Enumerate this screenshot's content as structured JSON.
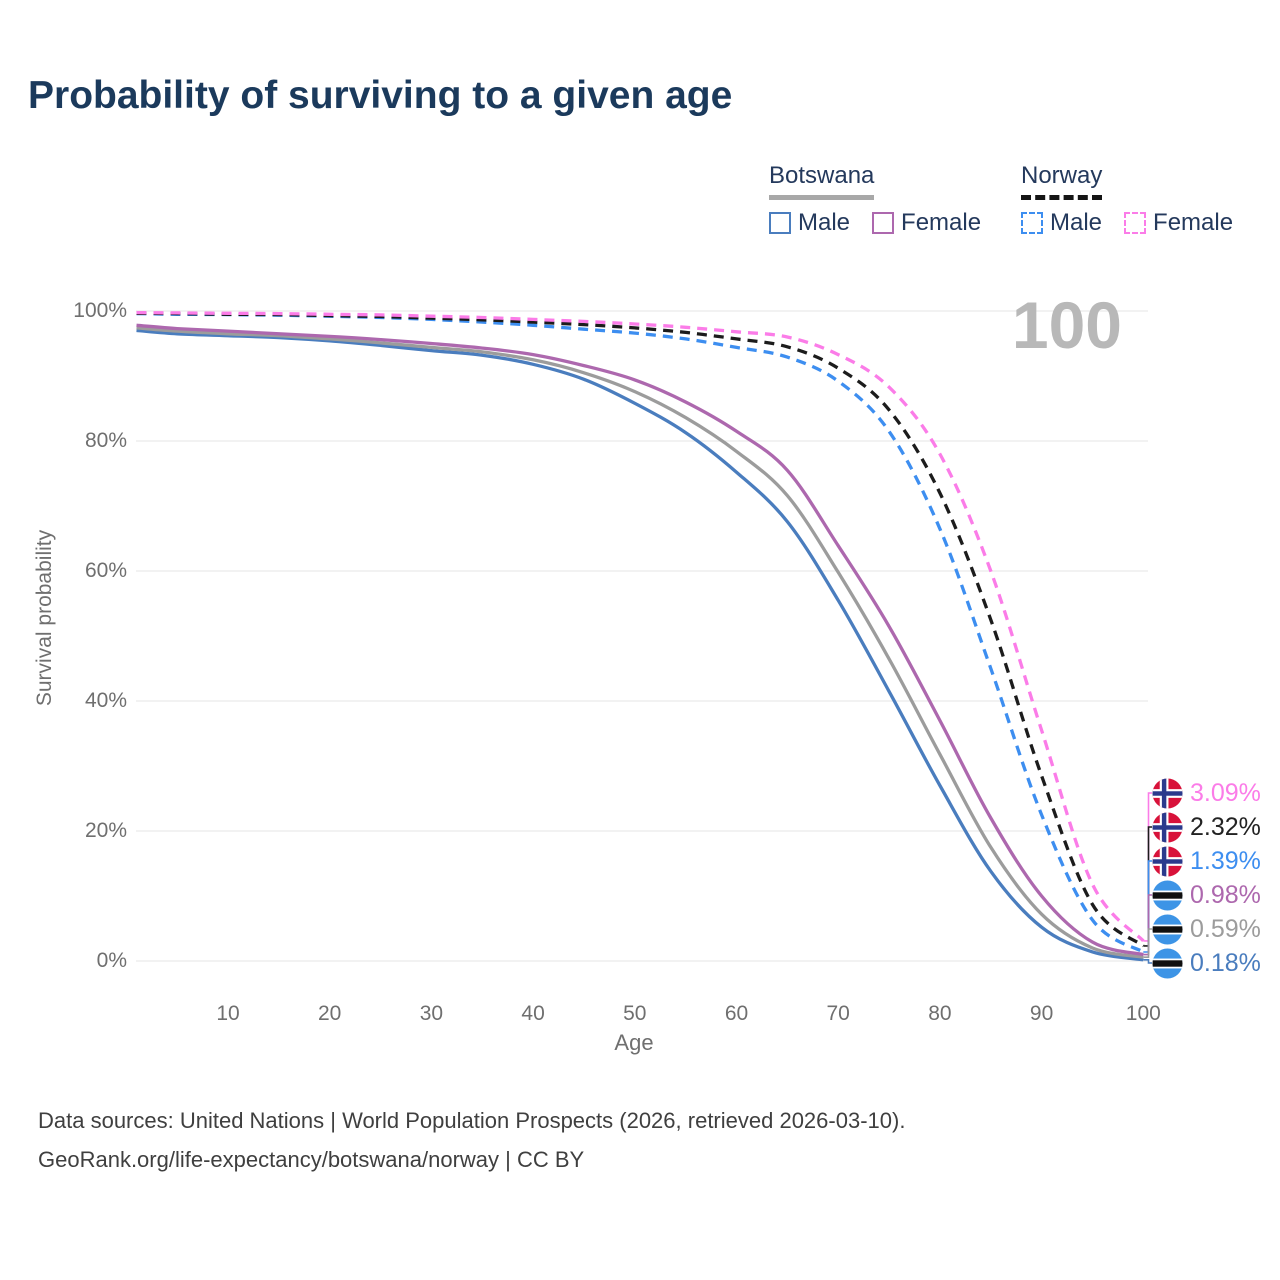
{
  "title": "Probability of surviving to a given age",
  "watermark_age": "100",
  "legend": {
    "groups": [
      {
        "country": "Botswana",
        "line_style": "solid",
        "line_color": "#a8a8a8",
        "items": [
          {
            "label": "Male",
            "color": "#4a7dbe"
          },
          {
            "label": "Female",
            "color": "#ad68ae"
          }
        ]
      },
      {
        "country": "Norway",
        "line_style": "dashed",
        "line_color": "#151515",
        "items": [
          {
            "label": "Male",
            "color": "#3d8ef0"
          },
          {
            "label": "Female",
            "color": "#fb7ce8"
          }
        ]
      }
    ]
  },
  "y_axis": {
    "label": "Survival probability",
    "ticks": [
      100,
      80,
      60,
      40,
      20,
      0
    ],
    "unit": "%"
  },
  "x_axis": {
    "label": "Age",
    "ticks": [
      10,
      20,
      30,
      40,
      50,
      60,
      70,
      80,
      90,
      100
    ]
  },
  "chart_data": {
    "type": "line",
    "title": "Probability of surviving to a given age",
    "xlabel": "Age",
    "ylabel": "Survival probability",
    "xlim": [
      0,
      100
    ],
    "ylim": [
      0,
      100
    ],
    "grid": "horizontal",
    "legend_position": "top-right",
    "x_ages": [
      1,
      5,
      10,
      15,
      20,
      25,
      30,
      35,
      40,
      45,
      50,
      55,
      60,
      65,
      70,
      75,
      80,
      85,
      90,
      95,
      100
    ],
    "series": [
      {
        "name": "Botswana Male",
        "country": "Botswana",
        "sex": "Male",
        "color": "#4a7dbe",
        "dash": false,
        "values": [
          97.0,
          96.5,
          96.2,
          95.9,
          95.4,
          94.7,
          93.9,
          93.2,
          91.8,
          89.5,
          85.8,
          81.3,
          75.2,
          67.6,
          55.5,
          41.5,
          27.0,
          13.8,
          5.2,
          1.4,
          0.18
        ]
      },
      {
        "name": "Botswana Both sexes",
        "country": "Botswana",
        "sex": "Both",
        "color": "#9c9c9c",
        "dash": false,
        "values": [
          97.4,
          96.9,
          96.5,
          96.2,
          95.7,
          95.1,
          94.4,
          93.7,
          92.5,
          90.5,
          87.6,
          83.6,
          78.4,
          71.6,
          59.8,
          46.5,
          31.8,
          17.5,
          7.2,
          2.0,
          0.59
        ]
      },
      {
        "name": "Botswana Female",
        "country": "Botswana",
        "sex": "Female",
        "color": "#ad68ae",
        "dash": false,
        "values": [
          97.8,
          97.3,
          96.9,
          96.5,
          96.1,
          95.6,
          95.0,
          94.3,
          93.3,
          91.6,
          89.4,
          86.0,
          81.5,
          75.5,
          63.9,
          51.5,
          37.0,
          22.0,
          10.0,
          2.9,
          0.98
        ]
      },
      {
        "name": "Norway Male",
        "country": "Norway",
        "sex": "Male",
        "color": "#3d8ef0",
        "dash": true,
        "values": [
          99.6,
          99.5,
          99.45,
          99.35,
          99.2,
          99.0,
          98.7,
          98.3,
          97.8,
          97.2,
          96.6,
          95.7,
          94.4,
          92.9,
          89.2,
          81.5,
          66.5,
          45.0,
          22.5,
          6.3,
          1.39
        ]
      },
      {
        "name": "Norway Both sexes",
        "country": "Norway",
        "sex": "Both",
        "color": "#1c1c1c",
        "dash": true,
        "values": [
          99.65,
          99.6,
          99.5,
          99.45,
          99.3,
          99.15,
          98.9,
          98.65,
          98.3,
          97.9,
          97.4,
          96.7,
          95.7,
          94.5,
          91.2,
          84.8,
          72.0,
          52.5,
          28.5,
          8.7,
          2.32
        ]
      },
      {
        "name": "Norway Female",
        "country": "Norway",
        "sex": "Female",
        "color": "#fb7ce8",
        "dash": true,
        "values": [
          99.75,
          99.7,
          99.65,
          99.6,
          99.5,
          99.4,
          99.2,
          99.0,
          98.7,
          98.4,
          98.0,
          97.5,
          96.8,
          96.0,
          93.3,
          88.3,
          78.0,
          60.0,
          35.5,
          11.8,
          3.09
        ]
      }
    ]
  },
  "end_labels": [
    {
      "value": "3.09%",
      "series": "Norway Female",
      "flag": "norway",
      "color": "#fb7ce8"
    },
    {
      "value": "2.32%",
      "series": "Norway Both sexes",
      "flag": "norway",
      "color": "#222222"
    },
    {
      "value": "1.39%",
      "series": "Norway Male",
      "flag": "norway",
      "color": "#3d8ef0"
    },
    {
      "value": "0.98%",
      "series": "Botswana Female",
      "flag": "botswana",
      "color": "#ad68ae"
    },
    {
      "value": "0.59%",
      "series": "Botswana Both sexes",
      "flag": "botswana",
      "color": "#9c9c9c"
    },
    {
      "value": "0.18%",
      "series": "Botswana Male",
      "flag": "botswana",
      "color": "#4a7dbe"
    }
  ],
  "footer": {
    "line1": "Data sources: United Nations | World Population Prospects (2026, retrieved 2026-03-10).",
    "line2": "GeoRank.org/life-expectancy/botswana/norway | CC BY"
  }
}
